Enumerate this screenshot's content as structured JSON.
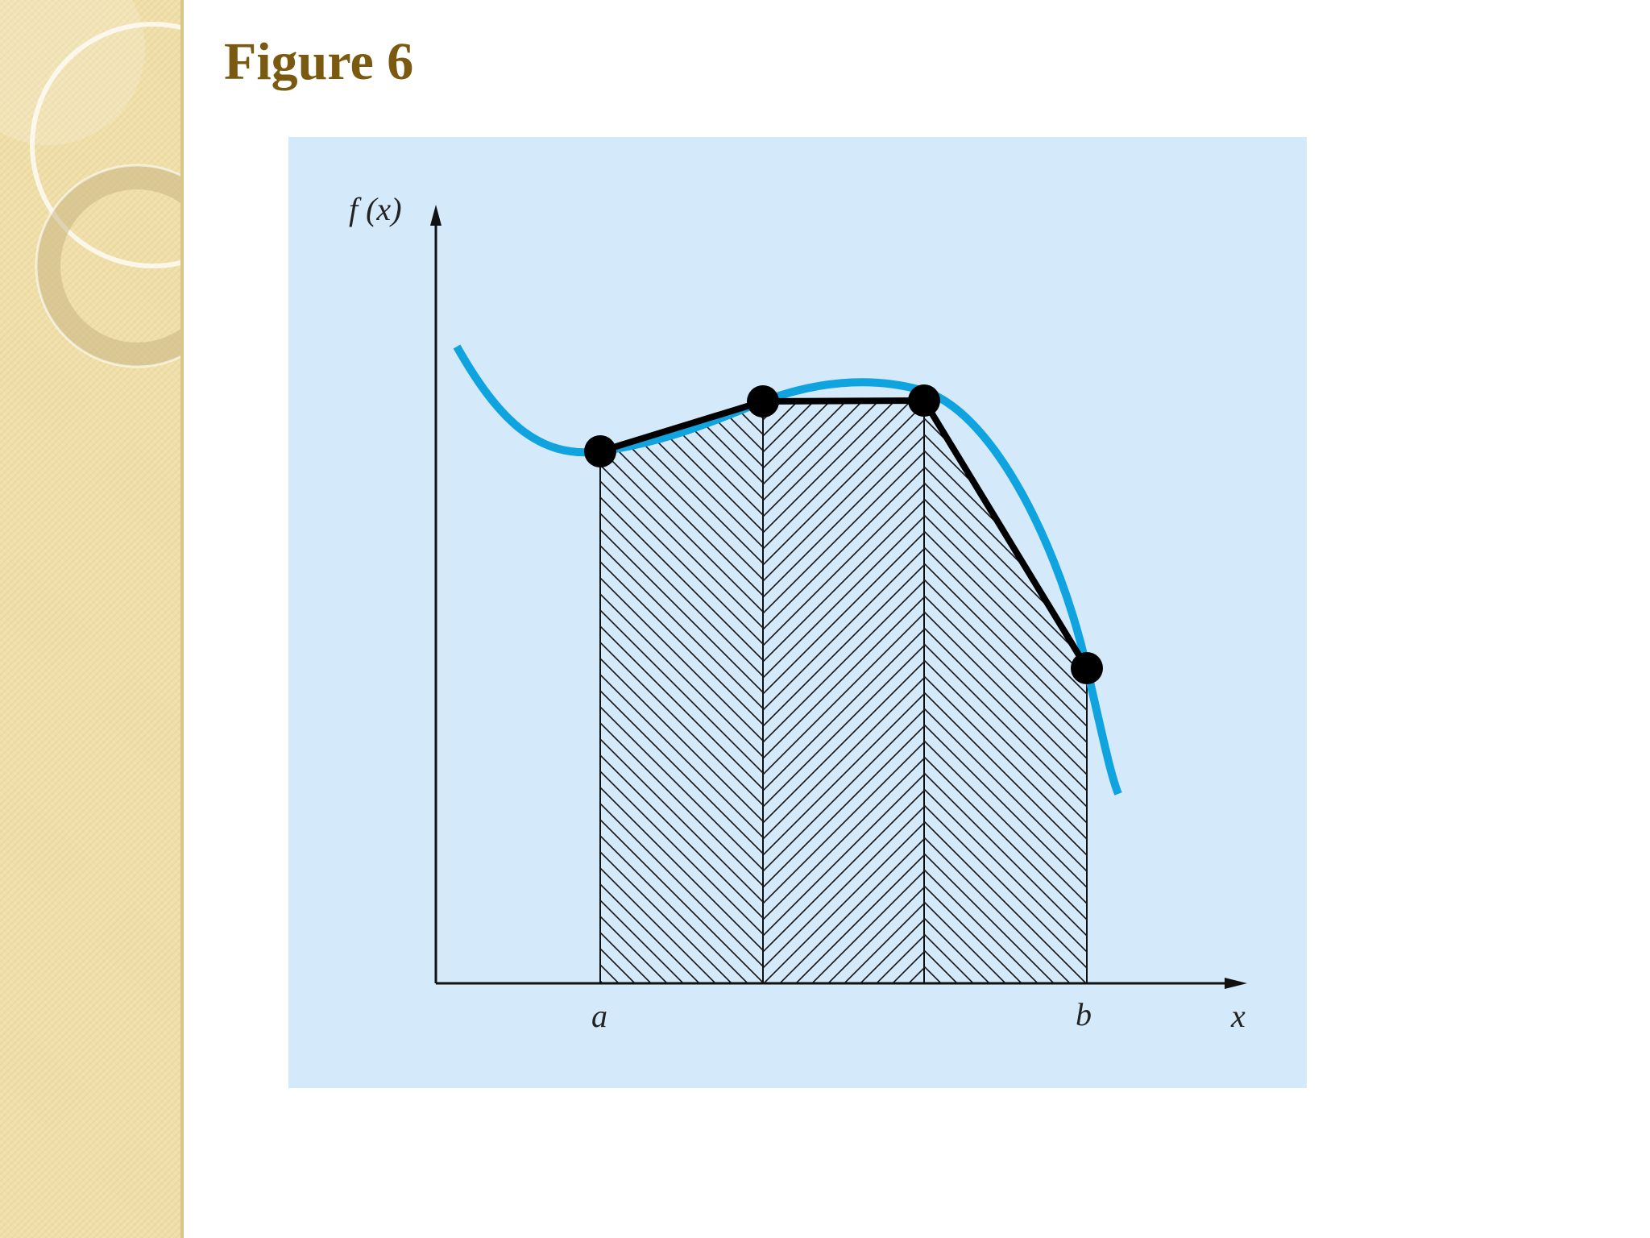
{
  "slide": {
    "title": "Figure 6"
  },
  "figure": {
    "y_axis_label": "f (x)",
    "x_axis_label": "x",
    "tick_a": "a",
    "tick_b": "b",
    "colors": {
      "panel_background": "#d4e9fa",
      "curve": "#0fa3e0",
      "polyline": "#000000",
      "title": "#7a5a10"
    }
  }
}
